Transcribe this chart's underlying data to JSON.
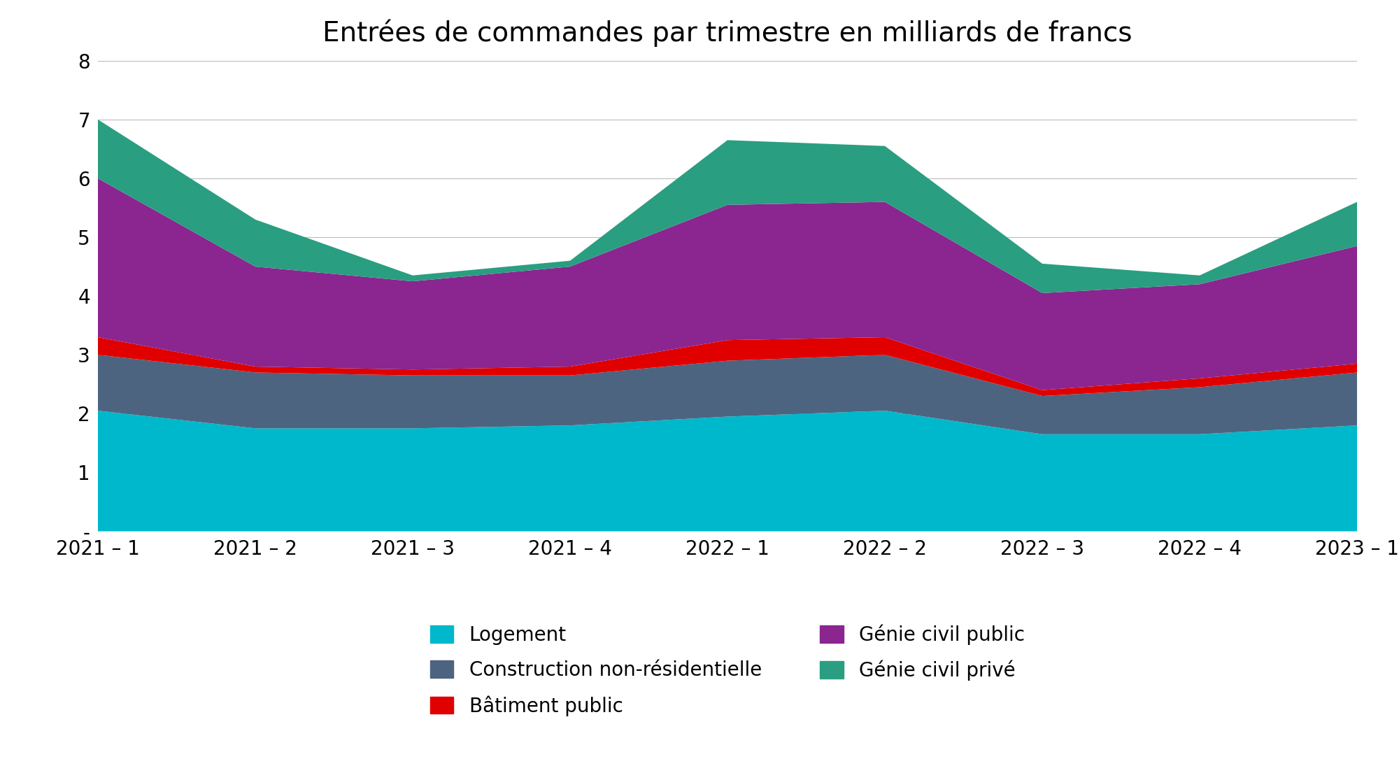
{
  "title": "Entrées de commandes par trimestre en milliards de francs",
  "x_labels": [
    "2021 – 1",
    "2021 – 2",
    "2021 – 3",
    "2021 – 4",
    "2022 – 1",
    "2022 – 2",
    "2022 – 3",
    "2022 – 4",
    "2023 – 1"
  ],
  "series": [
    {
      "name": "Logement",
      "values": [
        2.05,
        1.75,
        1.75,
        1.8,
        1.95,
        2.05,
        1.65,
        1.65,
        1.8
      ],
      "color": "#00B8CC"
    },
    {
      "name": "Construction non-résidentielle",
      "values": [
        0.95,
        0.95,
        0.9,
        0.85,
        0.95,
        0.95,
        0.65,
        0.8,
        0.9
      ],
      "color": "#4D6480"
    },
    {
      "name": "Bâtiment public",
      "values": [
        0.3,
        0.1,
        0.1,
        0.15,
        0.35,
        0.3,
        0.1,
        0.15,
        0.15
      ],
      "color": "#E00000"
    },
    {
      "name": "Génie civil public",
      "values": [
        2.7,
        1.7,
        1.5,
        1.7,
        2.3,
        2.3,
        1.65,
        1.6,
        2.0
      ],
      "color": "#8B2590"
    },
    {
      "name": "Génie civil privé",
      "values": [
        1.0,
        0.8,
        0.1,
        0.1,
        1.1,
        0.95,
        0.5,
        0.15,
        0.75
      ],
      "color": "#2A9E80"
    }
  ],
  "ylim": [
    0,
    8
  ],
  "yticks": [
    0,
    1,
    2,
    3,
    4,
    5,
    6,
    7,
    8
  ],
  "ytick_labels": [
    "-",
    "1",
    "2",
    "3",
    "4",
    "5",
    "6",
    "7",
    "8"
  ],
  "background_color": "#FFFFFF",
  "grid_color": "#BBBBBB",
  "title_fontsize": 28,
  "tick_fontsize": 20,
  "legend_fontsize": 20
}
